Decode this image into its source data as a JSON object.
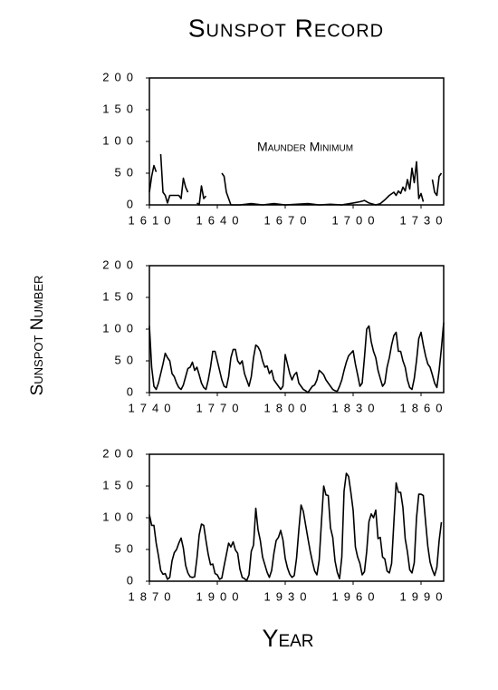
{
  "title": "Sunspot Record",
  "ylabel": "Sunspot Number",
  "xlabel": "Year",
  "chart_data": [
    {
      "type": "line",
      "color": "#000000",
      "annotation": "Maunder Minimum",
      "xlim": [
        1610,
        1740
      ],
      "xticks": [
        1610,
        1640,
        1670,
        1700,
        1730
      ],
      "ylim": [
        0,
        200
      ],
      "yticks": [
        0,
        50,
        100,
        150,
        200
      ],
      "x": [
        1610,
        1611,
        1612,
        1613,
        1614,
        1615,
        1616,
        1617,
        1618,
        1619,
        1620,
        1621,
        1622,
        1623,
        1624,
        1625,
        1626,
        1627,
        1628,
        1631,
        1632,
        1633,
        1634,
        1635,
        1636,
        1642,
        1643,
        1644,
        1645,
        1646,
        1650,
        1655,
        1660,
        1665,
        1670,
        1675,
        1680,
        1685,
        1690,
        1695,
        1700,
        1703,
        1705,
        1707,
        1710,
        1712,
        1714,
        1716,
        1718,
        1719,
        1720,
        1721,
        1722,
        1723,
        1724,
        1725,
        1726,
        1727,
        1728,
        1729,
        1730,
        1731,
        1732,
        1735,
        1736,
        1737,
        1738,
        1739
      ],
      "values": [
        20,
        45,
        62,
        52,
        null,
        80,
        20,
        15,
        3,
        15,
        15,
        15,
        15,
        15,
        10,
        42,
        28,
        20,
        null,
        3,
        0,
        30,
        10,
        14,
        null,
        50,
        45,
        20,
        10,
        0,
        0,
        2,
        0,
        2,
        0,
        1,
        2,
        0,
        1,
        0,
        3,
        5,
        7,
        3,
        0,
        2,
        8,
        15,
        20,
        15,
        22,
        18,
        28,
        22,
        40,
        25,
        58,
        35,
        68,
        10,
        18,
        5,
        null,
        40,
        20,
        15,
        45,
        50
      ]
    },
    {
      "type": "line",
      "color": "#000000",
      "xlim": [
        1740,
        1870
      ],
      "xticks": [
        1740,
        1770,
        1800,
        1830,
        1860
      ],
      "ylim": [
        0,
        200
      ],
      "yticks": [
        0,
        50,
        100,
        150,
        200
      ],
      "x": [
        1740,
        1741,
        1742,
        1743,
        1744,
        1745,
        1746,
        1747,
        1748,
        1749,
        1750,
        1751,
        1752,
        1753,
        1754,
        1755,
        1756,
        1757,
        1758,
        1759,
        1760,
        1761,
        1762,
        1763,
        1764,
        1765,
        1766,
        1767,
        1768,
        1769,
        1770,
        1771,
        1772,
        1773,
        1774,
        1775,
        1776,
        1777,
        1778,
        1779,
        1780,
        1781,
        1782,
        1783,
        1784,
        1785,
        1786,
        1787,
        1788,
        1789,
        1790,
        1791,
        1792,
        1793,
        1794,
        1795,
        1796,
        1797,
        1798,
        1799,
        1800,
        1801,
        1802,
        1803,
        1804,
        1805,
        1806,
        1807,
        1808,
        1809,
        1810,
        1811,
        1812,
        1813,
        1814,
        1815,
        1816,
        1817,
        1818,
        1819,
        1820,
        1821,
        1822,
        1823,
        1824,
        1825,
        1826,
        1827,
        1828,
        1829,
        1830,
        1831,
        1832,
        1833,
        1834,
        1835,
        1836,
        1837,
        1838,
        1839,
        1840,
        1841,
        1842,
        1843,
        1844,
        1845,
        1846,
        1847,
        1848,
        1849,
        1850,
        1851,
        1852,
        1853,
        1854,
        1855,
        1856,
        1857,
        1858,
        1859,
        1860,
        1861,
        1862,
        1863,
        1864,
        1865,
        1866,
        1867,
        1868,
        1869,
        1870
      ],
      "values": [
        105,
        40,
        10,
        5,
        15,
        30,
        45,
        62,
        55,
        50,
        30,
        25,
        15,
        8,
        5,
        12,
        25,
        38,
        40,
        48,
        35,
        40,
        28,
        15,
        8,
        5,
        20,
        40,
        65,
        65,
        50,
        35,
        20,
        10,
        8,
        25,
        55,
        68,
        68,
        50,
        45,
        50,
        30,
        20,
        10,
        25,
        55,
        75,
        72,
        65,
        50,
        40,
        42,
        30,
        35,
        20,
        15,
        10,
        5,
        10,
        60,
        45,
        30,
        20,
        28,
        32,
        15,
        10,
        5,
        3,
        0,
        5,
        10,
        12,
        20,
        35,
        32,
        28,
        20,
        15,
        10,
        5,
        3,
        2,
        10,
        20,
        35,
        48,
        58,
        62,
        66,
        45,
        28,
        10,
        15,
        55,
        100,
        105,
        80,
        65,
        55,
        35,
        22,
        10,
        15,
        40,
        55,
        75,
        90,
        95,
        65,
        65,
        50,
        40,
        20,
        8,
        5,
        22,
        50,
        85,
        95,
        75,
        58,
        45,
        40,
        28,
        15,
        8,
        35,
        70,
        110
      ]
    },
    {
      "type": "line",
      "color": "#000000",
      "xlim": [
        1870,
        2000
      ],
      "xticks": [
        1870,
        1900,
        1930,
        1960,
        1990
      ],
      "ylim": [
        0,
        200
      ],
      "yticks": [
        0,
        50,
        100,
        150,
        200
      ],
      "x": [
        1870,
        1871,
        1872,
        1873,
        1874,
        1875,
        1876,
        1877,
        1878,
        1879,
        1880,
        1881,
        1882,
        1883,
        1884,
        1885,
        1886,
        1887,
        1888,
        1889,
        1890,
        1891,
        1892,
        1893,
        1894,
        1895,
        1896,
        1897,
        1898,
        1899,
        1900,
        1901,
        1902,
        1903,
        1904,
        1905,
        1906,
        1907,
        1908,
        1909,
        1910,
        1911,
        1912,
        1913,
        1914,
        1915,
        1916,
        1917,
        1918,
        1919,
        1920,
        1921,
        1922,
        1923,
        1924,
        1925,
        1926,
        1927,
        1928,
        1929,
        1930,
        1931,
        1932,
        1933,
        1934,
        1935,
        1936,
        1937,
        1938,
        1939,
        1940,
        1941,
        1942,
        1943,
        1944,
        1945,
        1946,
        1947,
        1948,
        1949,
        1950,
        1951,
        1952,
        1953,
        1954,
        1955,
        1956,
        1957,
        1958,
        1959,
        1960,
        1961,
        1962,
        1963,
        1964,
        1965,
        1966,
        1967,
        1968,
        1969,
        1970,
        1971,
        1972,
        1973,
        1974,
        1975,
        1976,
        1977,
        1978,
        1979,
        1980,
        1981,
        1982,
        1983,
        1984,
        1985,
        1986,
        1987,
        1988,
        1989,
        1990,
        1991,
        1992,
        1993,
        1994,
        1995,
        1996,
        1997,
        1998,
        1999
      ],
      "values": [
        105,
        88,
        88,
        60,
        40,
        17,
        11,
        12,
        3,
        6,
        32,
        45,
        50,
        60,
        68,
        52,
        25,
        13,
        7,
        6,
        7,
        36,
        73,
        90,
        88,
        64,
        42,
        26,
        27,
        12,
        10,
        3,
        5,
        24,
        42,
        60,
        54,
        62,
        49,
        44,
        19,
        6,
        4,
        1,
        10,
        47,
        57,
        115,
        81,
        64,
        38,
        26,
        14,
        6,
        17,
        44,
        64,
        69,
        80,
        65,
        36,
        21,
        11,
        6,
        9,
        36,
        80,
        120,
        110,
        89,
        68,
        48,
        31,
        16,
        10,
        33,
        93,
        150,
        136,
        135,
        84,
        69,
        32,
        14,
        4,
        38,
        142,
        170,
        165,
        140,
        112,
        54,
        38,
        28,
        10,
        15,
        47,
        94,
        106,
        100,
        112,
        67,
        69,
        38,
        35,
        16,
        13,
        28,
        93,
        155,
        140,
        140,
        116,
        67,
        46,
        18,
        13,
        29,
        100,
        137,
        137,
        135,
        94,
        55,
        30,
        18,
        9,
        22,
        64,
        93
      ]
    }
  ]
}
